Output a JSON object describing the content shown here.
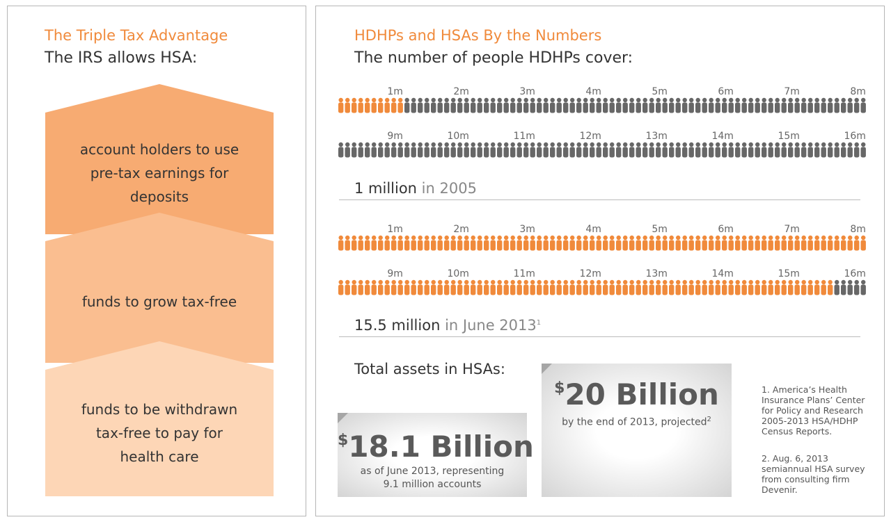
{
  "left": {
    "title": "The Triple Tax Advantage",
    "subtitle": "The IRS allows HSA:",
    "items": [
      {
        "text": "account holders to use\npre-tax earnings for deposits",
        "color": "#f7ab72"
      },
      {
        "text": "funds to grow tax-free",
        "color": "#fabe90"
      },
      {
        "text": "funds to be withdrawn\ntax-free to pay for\nhealth care",
        "color": "#fdd6b6"
      }
    ]
  },
  "right": {
    "title": "HDHPs and HSAs By the Numbers",
    "subtitle": "The number of people HDHPs cover:",
    "stat_2005": {
      "value": "1 million",
      "rest": " in 2005"
    },
    "stat_2013": {
      "value": "15.5 million",
      "rest": " in June 2013",
      "sup": "1"
    },
    "assets_label": "Total assets in HSAs:",
    "asset_18": {
      "dollar": "$",
      "amount": "18.1 Billion",
      "desc": "as of June 2013, representing\n9.1 million accounts"
    },
    "asset_20": {
      "dollar": "$",
      "amount": "20 Billion",
      "desc": "by the end of 2013, projected",
      "sup": "2"
    },
    "footnotes": [
      "1. America’s Health\nInsurance Plans’ Center\nfor Policy and Research\n2005-2013 HSA/HDHP\nCensus Reports.",
      "2. Aug. 6, 2013\nsemiannual HSA survey\nfrom consulting firm\nDevenir."
    ]
  },
  "colors": {
    "orange": "#f08a3b",
    "gray": "#676767",
    "text": "#333333"
  },
  "chart_data": [
    {
      "type": "pictogram",
      "unit_per_icon_millions": 0.1,
      "tick_labels_row1": [
        "1m",
        "2m",
        "3m",
        "4m",
        "5m",
        "6m",
        "7m",
        "8m"
      ],
      "tick_labels_row2": [
        "9m",
        "10m",
        "11m",
        "12m",
        "13m",
        "14m",
        "15m",
        "16m"
      ],
      "total_millions": 16,
      "highlighted_millions": 1,
      "label": "1 million in 2005"
    },
    {
      "type": "pictogram",
      "unit_per_icon_millions": 0.1,
      "tick_labels_row1": [
        "1m",
        "2m",
        "3m",
        "4m",
        "5m",
        "6m",
        "7m",
        "8m"
      ],
      "tick_labels_row2": [
        "9m",
        "10m",
        "11m",
        "12m",
        "13m",
        "14m",
        "15m",
        "16m"
      ],
      "total_millions": 16,
      "highlighted_millions": 15.5,
      "label": "15.5 million in June 2013"
    }
  ]
}
